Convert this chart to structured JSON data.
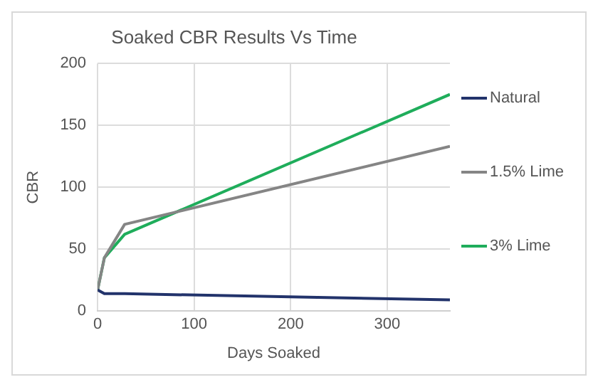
{
  "chart_data": {
    "type": "line",
    "title": "Soaked CBR Results Vs Time",
    "xlabel": "Days Soaked",
    "ylabel": "CBR",
    "x": [
      0,
      7,
      28,
      365
    ],
    "series": [
      {
        "name": "Natural",
        "color": "#22336b",
        "values": [
          17,
          14,
          14,
          9
        ]
      },
      {
        "name": "1.5% Lime",
        "color": "#858585",
        "values": [
          17,
          43,
          70,
          133
        ]
      },
      {
        "name": "3% Lime",
        "color": "#1fad5b",
        "values": [
          17,
          43,
          62,
          175
        ]
      }
    ],
    "xlim": [
      0,
      365
    ],
    "xticks": [
      0,
      100,
      200,
      300
    ],
    "ylim": [
      0,
      200
    ],
    "yticks": [
      0,
      50,
      100,
      150,
      200
    ],
    "grid": true,
    "legend": "right",
    "marker": "none",
    "line_style": "solid"
  }
}
